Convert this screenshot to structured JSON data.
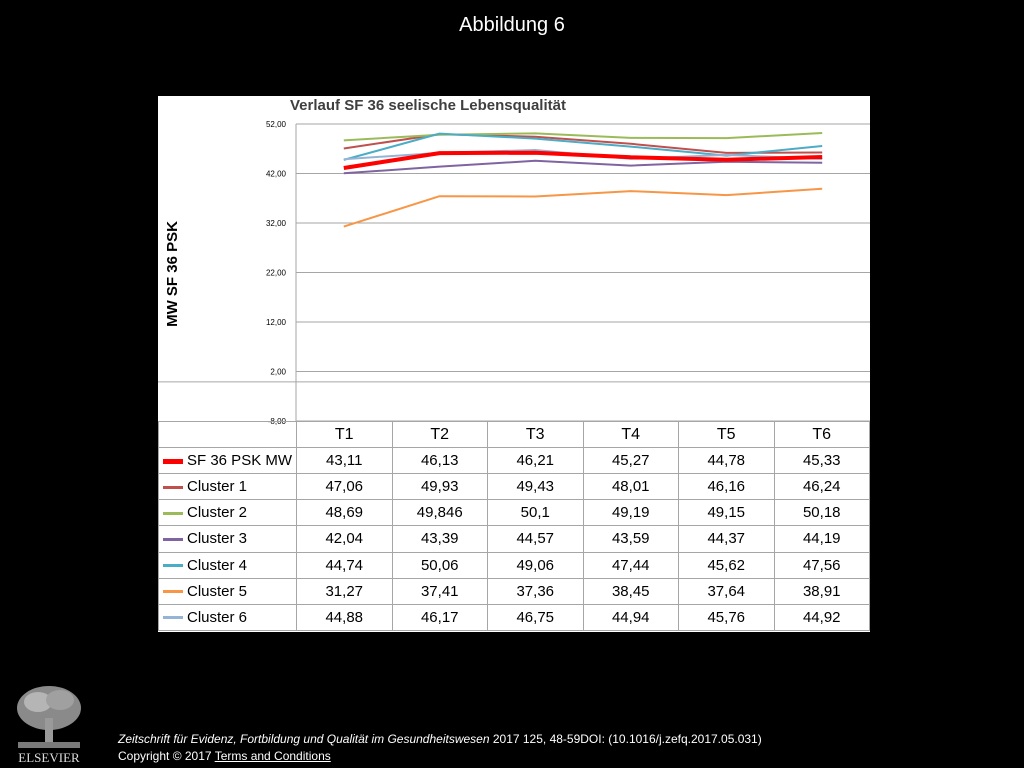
{
  "slide": {
    "title": "Abbildung 6"
  },
  "chart_data": {
    "type": "line",
    "title": "Verlauf SF 36 seelische Lebensqualität",
    "ylabel": "MW SF 36 PSK",
    "xlabel": "",
    "categories": [
      "T1",
      "T2",
      "T3",
      "T4",
      "T5",
      "T6"
    ],
    "ylim": [
      -8,
      52
    ],
    "yticks": [
      "52,00",
      "42,00",
      "32,00",
      "22,00",
      "12,00",
      "2,00",
      "-8,00"
    ],
    "ytick_values": [
      52,
      42,
      32,
      22,
      12,
      2,
      -8
    ],
    "grid": true,
    "legend": "data table below plot",
    "series": [
      {
        "name": "SF 36 PSK MW",
        "color": "#ff0000",
        "thick": true,
        "labels": [
          "43,11",
          "46,13",
          "46,21",
          "45,27",
          "44,78",
          "45,33"
        ],
        "values": [
          43.11,
          46.13,
          46.21,
          45.27,
          44.78,
          45.33
        ]
      },
      {
        "name": "Cluster 1",
        "color": "#c0504d",
        "thick": false,
        "labels": [
          "47,06",
          "49,93",
          "49,43",
          "48,01",
          "46,16",
          "46,24"
        ],
        "values": [
          47.06,
          49.93,
          49.43,
          48.01,
          46.16,
          46.24
        ]
      },
      {
        "name": "Cluster 2",
        "color": "#9bbb59",
        "thick": false,
        "labels": [
          "48,69",
          "49,846",
          "50,1",
          "49,19",
          "49,15",
          "50,18"
        ],
        "values": [
          48.69,
          49.846,
          50.1,
          49.19,
          49.15,
          50.18
        ]
      },
      {
        "name": "Cluster 3",
        "color": "#8064a2",
        "thick": false,
        "labels": [
          "42,04",
          "43,39",
          "44,57",
          "43,59",
          "44,37",
          "44,19"
        ],
        "values": [
          42.04,
          43.39,
          44.57,
          43.59,
          44.37,
          44.19
        ]
      },
      {
        "name": "Cluster 4",
        "color": "#4bacc6",
        "thick": false,
        "labels": [
          "44,74",
          "50,06",
          "49,06",
          "47,44",
          "45,62",
          "47,56"
        ],
        "values": [
          44.74,
          50.06,
          49.06,
          47.44,
          45.62,
          47.56
        ]
      },
      {
        "name": "Cluster 5",
        "color": "#f79646",
        "thick": false,
        "labels": [
          "31,27",
          "37,41",
          "37,36",
          "38,45",
          "37,64",
          "38,91"
        ],
        "values": [
          31.27,
          37.41,
          37.36,
          38.45,
          37.64,
          38.91
        ]
      },
      {
        "name": "Cluster 6",
        "color": "#95b3d7",
        "thick": false,
        "labels": [
          "44,88",
          "46,17",
          "46,75",
          "44,94",
          "45,76",
          "44,92"
        ],
        "values": [
          44.88,
          46.17,
          46.75,
          44.94,
          45.76,
          44.92
        ]
      }
    ]
  },
  "footer": {
    "journal": "Zeitschrift für Evidenz, Fortbildung und Qualität im Gesundheitswesen",
    "citation_rest": " 2017 125, 48-59DOI: (10.1016/j.zefq.2017.05.031)",
    "copyright": "Copyright © 2017 ",
    "terms_label": " Terms and Conditions",
    "logo_text": "ELSEVIER"
  }
}
